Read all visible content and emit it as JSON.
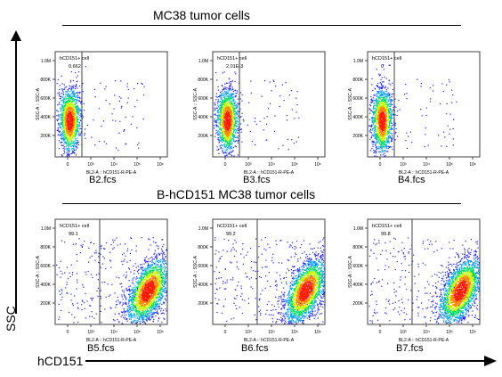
{
  "titles": {
    "top": "MC38 tumor cells",
    "bottom": "B-hCD151 MC38 tumor cells"
  },
  "axes": {
    "x_big": "hCD151",
    "y_big": "SSC"
  },
  "colors": {
    "frame": "#404040",
    "density": [
      "#1a1aff",
      "#00a0ff",
      "#00e060",
      "#c8ff00",
      "#ff8800",
      "#ff1a00"
    ]
  },
  "chart_data": [
    {
      "type": "scatter",
      "file": "B2.fcs",
      "gate_label": "hCD151+ cell",
      "gate_value": "0.662",
      "xlabel": "BL2-A :: hCD151-R-PE-A",
      "ylabel": "SSC-A :: SSC-A",
      "ytick_labels": [
        "1.0M",
        "800K",
        "600K",
        "400K",
        "200K"
      ],
      "xtick_labels": [
        "0",
        "10³",
        "10⁴",
        "10⁵",
        "10⁶"
      ],
      "population": "negative"
    },
    {
      "type": "scatter",
      "file": "B3.fcs",
      "gate_label": "hCD151+ cell",
      "gate_value": "2.01E-3",
      "xlabel": "BL2-A :: hCD151-R-PE-A",
      "ylabel": "SSC-A :: SSC-A",
      "ytick_labels": [
        "1.0M",
        "800K",
        "600K",
        "400K",
        "200K"
      ],
      "xtick_labels": [
        "0",
        "10³",
        "10⁴",
        "10⁵",
        "10⁶"
      ],
      "population": "negative"
    },
    {
      "type": "scatter",
      "file": "B4.fcs",
      "gate_label": "hCD151+ cell",
      "gate_value": "0",
      "xlabel": "BL2-A :: hCD151-R-PE-A",
      "ylabel": "SSC-A :: SSC-A",
      "ytick_labels": [
        "1.0M",
        "800K",
        "600K",
        "400K",
        "200K"
      ],
      "xtick_labels": [
        "0",
        "10³",
        "10⁴",
        "10⁵",
        "10⁶"
      ],
      "population": "negative"
    },
    {
      "type": "scatter",
      "file": "B5.fcs",
      "gate_label": "hCD151+ cell",
      "gate_value": "99.1",
      "xlabel": "BL2-A :: hCD151-R-PE-A",
      "ylabel": "SSC-A :: SSC-A",
      "ytick_labels": [
        "1.0M",
        "800K",
        "600K",
        "400K",
        "200K"
      ],
      "xtick_labels": [
        "0",
        "10³",
        "10⁴",
        "10⁵",
        "10⁶"
      ],
      "population": "positive"
    },
    {
      "type": "scatter",
      "file": "B6.fcs",
      "gate_label": "hCD151+ cell",
      "gate_value": "99.2",
      "xlabel": "BL2-A :: hCD151-R-PE-A",
      "ylabel": "SSC-A :: SSC-A",
      "ytick_labels": [
        "1.0M",
        "800K",
        "600K",
        "400K",
        "200K"
      ],
      "xtick_labels": [
        "0",
        "10³",
        "10⁴",
        "10⁵",
        "10⁶"
      ],
      "population": "positive"
    },
    {
      "type": "scatter",
      "file": "B7.fcs",
      "gate_label": "hCD151+ cell",
      "gate_value": "99.8",
      "xlabel": "BL2-A :: hCD151-R-PE-A",
      "ylabel": "SSC-A :: SSC-A",
      "ytick_labels": [
        "1.0M",
        "800K",
        "600K",
        "400K",
        "200K"
      ],
      "xtick_labels": [
        "0",
        "10³",
        "10⁴",
        "10⁵",
        "10⁶"
      ],
      "population": "positive"
    }
  ]
}
